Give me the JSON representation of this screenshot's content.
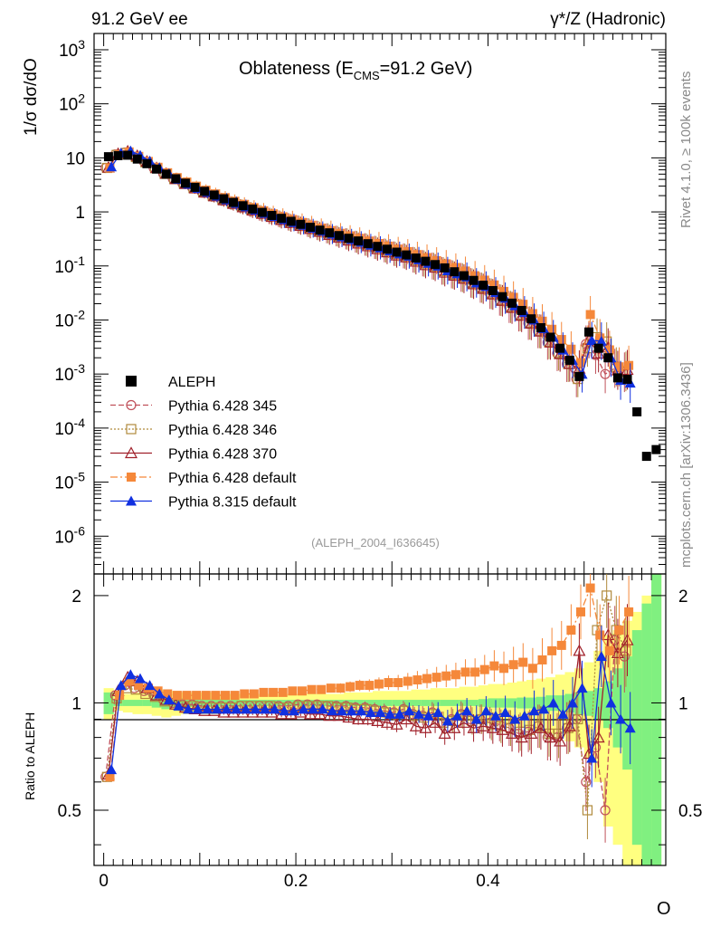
{
  "header": {
    "left": "91.2 GeV ee",
    "right": "γ*/Z (Hadronic)"
  },
  "side_labels": {
    "rivet": "Rivet 4.1.0, ≥ 100k events",
    "mcplots": "mcplots.cern.ch [arXiv:1306.3436]"
  },
  "colors": {
    "ALEPH": "#000000",
    "p345": "#c0505a",
    "p346": "#b08a3c",
    "p370": "#a0202a",
    "p6def": "#f5883a",
    "p8def": "#1030e0",
    "band_yellow": "#ffff80",
    "band_green": "#80f080"
  },
  "chart_data": {
    "type": "line",
    "title_main": "Oblateness (E",
    "title_sub": "CMS",
    "title_tail": "=91.2 GeV)",
    "ylabel": "1/σ  dσ/dO",
    "xlabel": "O",
    "ratio_ylabel": "Ratio to ALEPH",
    "analysis_tag": "(ALEPH_2004_I636645)",
    "xlim": [
      -0.01,
      0.585
    ],
    "ylim_log": [
      2e-07,
      2000
    ],
    "ratio_ylim": [
      0.35,
      2.3
    ],
    "y_tick_labels": [
      "10^-6",
      "10^-5",
      "10^-4",
      "10^-3",
      "10^-2",
      "10^-1",
      "1",
      "10",
      "10^2",
      "10^3"
    ],
    "x_tick_labels": [
      "0",
      "0.2",
      "0.4"
    ],
    "ratio_tick_labels": [
      "0.5",
      "1",
      "2"
    ],
    "legend": [
      {
        "key": "ALEPH",
        "label": "ALEPH"
      },
      {
        "key": "p345",
        "label": "Pythia 6.428 345"
      },
      {
        "key": "p346",
        "label": "Pythia 6.428 346"
      },
      {
        "key": "p370",
        "label": "Pythia 6.428 370"
      },
      {
        "key": "p6def",
        "label": "Pythia 6.428 default"
      },
      {
        "key": "p8def",
        "label": "Pythia 8.315 default"
      }
    ],
    "x": [
      0.005,
      0.015,
      0.025,
      0.035,
      0.045,
      0.055,
      0.065,
      0.075,
      0.085,
      0.095,
      0.105,
      0.115,
      0.125,
      0.135,
      0.145,
      0.155,
      0.165,
      0.175,
      0.185,
      0.195,
      0.205,
      0.215,
      0.225,
      0.235,
      0.245,
      0.255,
      0.265,
      0.275,
      0.285,
      0.295,
      0.305,
      0.315,
      0.325,
      0.335,
      0.345,
      0.355,
      0.365,
      0.375,
      0.385,
      0.395,
      0.405,
      0.415,
      0.425,
      0.435,
      0.445,
      0.455,
      0.465,
      0.475,
      0.485,
      0.495,
      0.505,
      0.515,
      0.525,
      0.535,
      0.545
    ],
    "aleph_x": [
      0.005,
      0.015,
      0.025,
      0.035,
      0.045,
      0.055,
      0.065,
      0.075,
      0.085,
      0.095,
      0.105,
      0.115,
      0.125,
      0.135,
      0.145,
      0.155,
      0.165,
      0.175,
      0.185,
      0.195,
      0.205,
      0.215,
      0.225,
      0.235,
      0.245,
      0.255,
      0.265,
      0.275,
      0.285,
      0.295,
      0.305,
      0.315,
      0.325,
      0.335,
      0.345,
      0.355,
      0.365,
      0.375,
      0.385,
      0.395,
      0.405,
      0.415,
      0.425,
      0.435,
      0.445,
      0.455,
      0.465,
      0.475,
      0.485,
      0.495,
      0.505,
      0.515,
      0.525,
      0.535,
      0.545,
      0.555,
      0.565,
      0.575
    ],
    "aleph_y": [
      10.5,
      11.0,
      11.2,
      9.5,
      7.8,
      6.2,
      5.0,
      4.1,
      3.4,
      2.85,
      2.4,
      2.05,
      1.75,
      1.5,
      1.3,
      1.13,
      0.98,
      0.86,
      0.76,
      0.67,
      0.59,
      0.52,
      0.46,
      0.41,
      0.365,
      0.325,
      0.29,
      0.258,
      0.23,
      0.204,
      0.18,
      0.16,
      0.14,
      0.122,
      0.106,
      0.092,
      0.078,
      0.066,
      0.054,
      0.044,
      0.035,
      0.027,
      0.0205,
      0.015,
      0.0105,
      0.0072,
      0.0048,
      0.003,
      0.0018,
      0.0009,
      0.006,
      0.003,
      0.002,
      0.00085,
      0.0008,
      0.0002,
      3e-05,
      4e-05
    ],
    "ratio_band_x": [
      0,
      0.01,
      0.02,
      0.03,
      0.04,
      0.05,
      0.06,
      0.07,
      0.08,
      0.09,
      0.1,
      0.11,
      0.12,
      0.13,
      0.14,
      0.15,
      0.16,
      0.17,
      0.18,
      0.19,
      0.2,
      0.21,
      0.22,
      0.23,
      0.24,
      0.25,
      0.26,
      0.27,
      0.28,
      0.29,
      0.3,
      0.31,
      0.32,
      0.33,
      0.34,
      0.35,
      0.36,
      0.37,
      0.38,
      0.39,
      0.4,
      0.41,
      0.42,
      0.43,
      0.44,
      0.45,
      0.46,
      0.47,
      0.48,
      0.49,
      0.5,
      0.51,
      0.52,
      0.53,
      0.54,
      0.55,
      0.56,
      0.57,
      0.58
    ],
    "ratio_band_green": [
      0.07,
      0.02,
      0.02,
      0.02,
      0.02,
      0.03,
      0.04,
      0.03,
      0.03,
      0.025,
      0.025,
      0.025,
      0.025,
      0.02,
      0.02,
      0.02,
      0.02,
      0.02,
      0.02,
      0.02,
      0.02,
      0.02,
      0.02,
      0.02,
      0.02,
      0.02,
      0.02,
      0.02,
      0.02,
      0.02,
      0.02,
      0.02,
      0.02,
      0.02,
      0.02,
      0.02,
      0.02,
      0.02,
      0.02,
      0.025,
      0.03,
      0.03,
      0.03,
      0.035,
      0.035,
      0.04,
      0.05,
      0.05,
      0.06,
      0.07,
      0.08,
      0.1,
      0.15,
      0.25,
      0.35,
      0.6,
      0.9,
      1.3
    ],
    "ratio_band_yellow": [
      0.1,
      0.05,
      0.06,
      0.07,
      0.07,
      0.08,
      0.09,
      0.08,
      0.07,
      0.07,
      0.07,
      0.07,
      0.06,
      0.06,
      0.06,
      0.06,
      0.06,
      0.06,
      0.06,
      0.06,
      0.06,
      0.06,
      0.06,
      0.06,
      0.06,
      0.07,
      0.07,
      0.07,
      0.08,
      0.08,
      0.08,
      0.08,
      0.09,
      0.09,
      0.1,
      0.1,
      0.1,
      0.11,
      0.11,
      0.12,
      0.13,
      0.13,
      0.14,
      0.15,
      0.16,
      0.17,
      0.18,
      0.2,
      0.22,
      0.25,
      0.3,
      0.4,
      0.55,
      0.6,
      0.7,
      0.8,
      1.0,
      1.3
    ],
    "series": [
      {
        "key": "p345",
        "name": "Pythia 6.428 345",
        "marker": "circle",
        "dash": "6,3",
        "ratio": [
          0.62,
          1.05,
          1.12,
          1.1,
          1.08,
          1.05,
          1.02,
          1.0,
          0.99,
          0.99,
          0.98,
          0.98,
          0.98,
          0.98,
          0.98,
          0.98,
          0.98,
          0.98,
          0.98,
          0.98,
          0.99,
          0.99,
          0.99,
          0.98,
          0.98,
          0.98,
          0.97,
          0.97,
          0.96,
          0.95,
          0.94,
          0.96,
          0.93,
          0.92,
          0.94,
          0.88,
          0.9,
          0.93,
          0.9,
          0.9,
          0.88,
          0.87,
          0.85,
          0.82,
          0.83,
          0.86,
          0.8,
          0.8,
          0.85,
          0.9,
          0.6,
          0.75,
          0.5,
          1.5,
          1.35
        ]
      },
      {
        "key": "p346",
        "name": "Pythia 6.428 346",
        "marker": "square-open",
        "dash": "2,2",
        "ratio": [
          0.62,
          1.03,
          1.1,
          1.09,
          1.06,
          1.04,
          1.01,
          0.99,
          0.98,
          0.98,
          0.97,
          0.97,
          0.97,
          0.97,
          0.98,
          0.98,
          0.98,
          0.98,
          0.97,
          0.97,
          0.98,
          0.98,
          0.98,
          0.98,
          0.97,
          0.97,
          0.96,
          0.96,
          0.95,
          0.94,
          0.93,
          0.95,
          0.92,
          0.91,
          0.93,
          0.88,
          0.89,
          0.92,
          0.89,
          0.9,
          0.87,
          0.86,
          0.85,
          0.83,
          0.84,
          0.86,
          0.82,
          0.82,
          0.85,
          0.9,
          0.5,
          1.6,
          2.0,
          1.6,
          1.4
        ]
      },
      {
        "key": "p370",
        "name": "Pythia 6.428 370",
        "marker": "triangle-open",
        "dash": "",
        "ratio": [
          0.63,
          1.08,
          1.18,
          1.15,
          1.1,
          1.05,
          1.02,
          0.99,
          0.97,
          0.96,
          0.95,
          0.95,
          0.94,
          0.94,
          0.94,
          0.94,
          0.94,
          0.94,
          0.93,
          0.93,
          0.94,
          0.93,
          0.93,
          0.92,
          0.92,
          0.91,
          0.9,
          0.9,
          0.89,
          0.88,
          0.87,
          0.9,
          0.86,
          0.85,
          0.88,
          0.82,
          0.85,
          0.88,
          0.85,
          0.86,
          0.85,
          0.84,
          0.82,
          0.8,
          0.82,
          0.85,
          0.8,
          0.78,
          0.86,
          1.4,
          0.72,
          0.8,
          1.55,
          1.38,
          1.5
        ]
      },
      {
        "key": "p6def",
        "name": "Pythia 6.428 default",
        "marker": "square",
        "dash": "8,3,2,3",
        "ratio": [
          0.62,
          1.05,
          1.15,
          1.12,
          1.1,
          1.08,
          1.06,
          1.05,
          1.05,
          1.05,
          1.05,
          1.05,
          1.05,
          1.05,
          1.06,
          1.06,
          1.07,
          1.07,
          1.07,
          1.08,
          1.08,
          1.09,
          1.09,
          1.1,
          1.1,
          1.11,
          1.12,
          1.12,
          1.13,
          1.14,
          1.14,
          1.15,
          1.16,
          1.17,
          1.18,
          1.19,
          1.2,
          1.22,
          1.22,
          1.24,
          1.27,
          1.25,
          1.28,
          1.3,
          1.25,
          1.32,
          1.4,
          1.45,
          1.6,
          1.8,
          2.1,
          1.55,
          1.4,
          1.6,
          1.8
        ]
      },
      {
        "key": "p8def",
        "name": "Pythia 8.315 default",
        "marker": "triangle",
        "dash": "",
        "ratio": [
          0.65,
          1.12,
          1.2,
          1.17,
          1.12,
          1.06,
          1.02,
          0.98,
          0.96,
          0.96,
          0.96,
          0.96,
          0.96,
          0.96,
          0.96,
          0.96,
          0.96,
          0.96,
          0.95,
          0.95,
          0.96,
          0.96,
          0.96,
          0.95,
          0.95,
          0.95,
          0.95,
          0.94,
          0.94,
          0.93,
          0.93,
          0.95,
          0.93,
          0.92,
          0.94,
          0.89,
          0.92,
          0.95,
          0.9,
          0.95,
          0.92,
          0.94,
          0.9,
          0.92,
          0.95,
          0.96,
          1.0,
          0.93,
          1.0,
          1.1,
          0.7,
          1.35,
          1.0,
          0.9,
          0.85
        ]
      }
    ]
  }
}
